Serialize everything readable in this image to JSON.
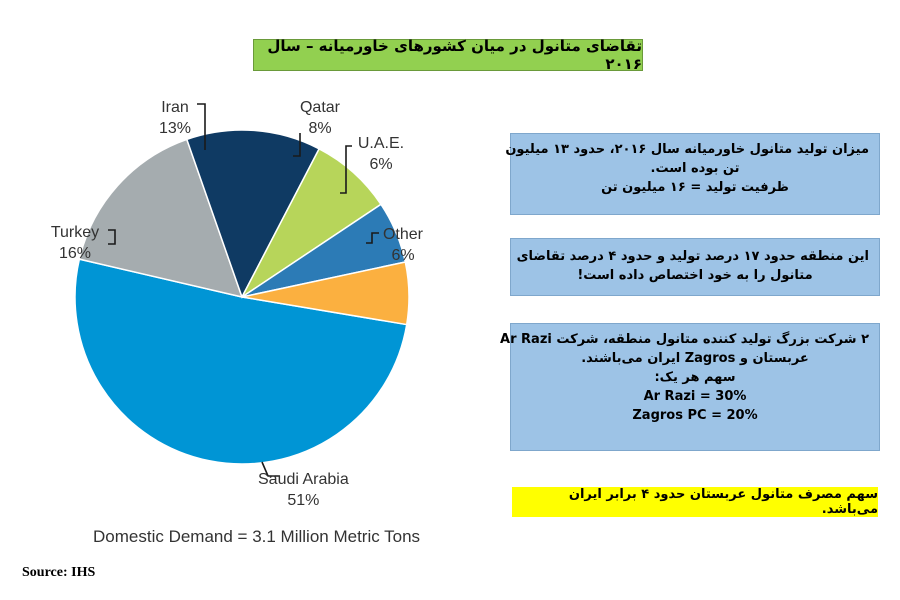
{
  "title": "تقاضای متانول در میان کشورهای خاورمیانه – سال ۲۰۱۶",
  "chart_data": {
    "type": "pie",
    "slices": [
      {
        "label": "Saudi Arabia",
        "pct": "51%",
        "value": 51,
        "color": "#0095d5"
      },
      {
        "label": "Turkey",
        "pct": "16%",
        "value": 16,
        "color": "#a5acaf"
      },
      {
        "label": "Iran",
        "pct": "13%",
        "value": 13,
        "color": "#0f3a63"
      },
      {
        "label": "Qatar",
        "pct": "8%",
        "value": 8,
        "color": "#b7d55a"
      },
      {
        "label": "U.A.E.",
        "pct": "6%",
        "value": 6,
        "color": "#2c7bb6"
      },
      {
        "label": "Other",
        "pct": "6%",
        "value": 6,
        "color": "#fbb040"
      }
    ],
    "footnote": "Domestic Demand = 3.1 Million Metric Tons"
  },
  "source": "Source: IHS",
  "box1": {
    "line1": "میزان تولید متانول خاورمیانه سال ۲۰۱۶، حدود ۱۳ میلیون",
    "line2": "تن بوده است.",
    "line3": "ظرفیت تولید = ۱۶ میلیون تن"
  },
  "box2": {
    "line1": "این منطقه حدود ۱۷ درصد تولید و حدود ۴ درصد تقاضای",
    "line2": "متانول را به خود اختصاص داده است!"
  },
  "box3": {
    "line1": "۲ شرکت بزرگ تولید کننده متانول منطقه، شرکت Ar Razi",
    "line2": "عربستان و Zagros ایران می‌باشند.",
    "line3": "سهم هر یک:",
    "line4": "Ar Razi = 30%",
    "line5": "Zagros PC = 20%"
  },
  "box4": {
    "line1": "سهم مصرف متانول عربستان حدود ۴ برابر ایران می‌باشد."
  }
}
